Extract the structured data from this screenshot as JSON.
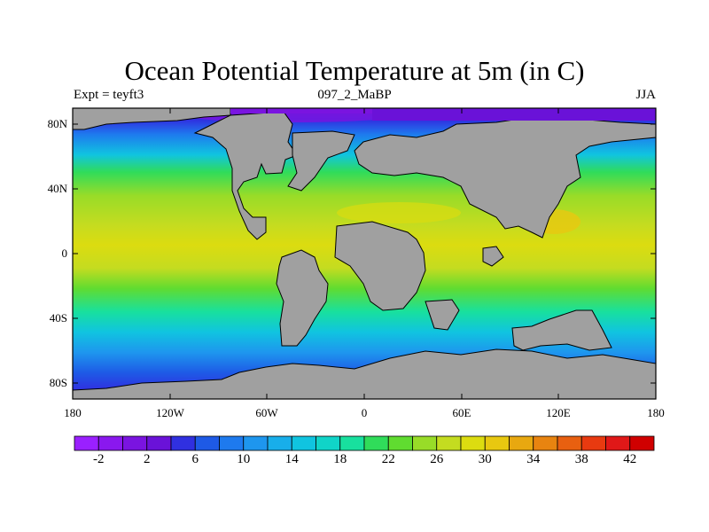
{
  "title": "Ocean Potential Temperature at 5m (in C)",
  "subtitle_left": "Expt = teyft3",
  "subtitle_center": "097_2_MaBP",
  "subtitle_right": "JJA",
  "lat_labels": [
    "80N",
    "40N",
    "0",
    "40S",
    "80S"
  ],
  "lon_labels": [
    "180",
    "120W",
    "60W",
    "0",
    "60E",
    "120E",
    "180"
  ],
  "colorbar": {
    "labels": [
      "-2",
      "2",
      "6",
      "10",
      "14",
      "18",
      "22",
      "26",
      "30",
      "34",
      "38",
      "42"
    ],
    "colors": [
      "#9a20ff",
      "#8a18ee",
      "#7a14e0",
      "#6a12d8",
      "#3030e0",
      "#1e5ae6",
      "#1e7aee",
      "#1e96ee",
      "#18aeea",
      "#10c4e0",
      "#10d4c8",
      "#18e09e",
      "#30dc5a",
      "#60dc30",
      "#98dc28",
      "#c4dc20",
      "#dcdc10",
      "#e8c810",
      "#e8a810",
      "#e88410",
      "#e86010",
      "#e83a10",
      "#e01818",
      "#d00000"
    ]
  },
  "land_color": "#a0a0a0"
}
